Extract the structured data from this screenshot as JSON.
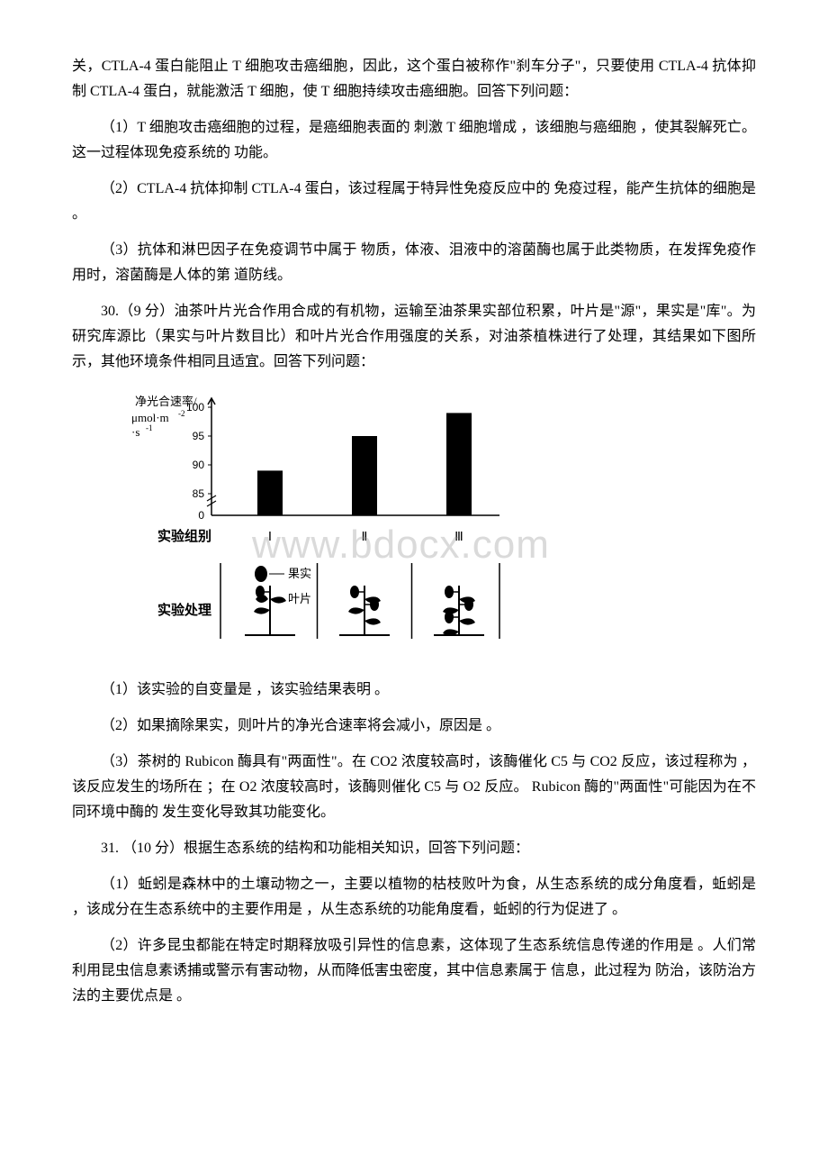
{
  "p1": "关，CTLA-4 蛋白能阻止 T 细胞攻击癌细胞，因此，这个蛋白被称作\"刹车分子\"，只要使用 CTLA-4 抗体抑制 CTLA-4 蛋白，就能激活 T 细胞，使 T 细胞持续攻击癌细胞。回答下列问题：",
  "p2": "（1）T 细胞攻击癌细胞的过程，是癌细胞表面的 刺激 T 细胞增成 ，该细胞与癌细胞 ，使其裂解死亡。这一过程体现免疫系统的 功能。",
  "p3": "（2）CTLA-4 抗体抑制 CTLA-4 蛋白，该过程属于特异性免疫反应中的 免疫过程，能产生抗体的细胞是 。",
  "p4": "（3）抗体和淋巴因子在免疫调节中属于 物质，体液、泪液中的溶菌酶也属于此类物质，在发挥免疫作用时，溶菌酶是人体的第 道防线。",
  "q30": "30.（9 分）油茶叶片光合作用合成的有机物，运输至油茶果实部位积累，叶片是\"源\"，果实是\"库\"。为研究库源比（果实与叶片数目比）和叶片光合作用强度的关系，对油茶植株进行了处理，其结果如下图所示，其他环境条件相同且适宜。回答下列问题：",
  "chart": {
    "type": "bar-with-diagram",
    "y_label": "净光合速率/\nμmol·m⁻²·s⁻¹",
    "y_ticks": [
      0,
      85,
      90,
      95,
      100
    ],
    "groups": [
      "Ⅰ",
      "Ⅱ",
      "Ⅲ"
    ],
    "bar_values": [
      89,
      95,
      99
    ],
    "bar_color": "#000000",
    "row1_label": "实验组别",
    "row2_label": "实验处理",
    "legend_fruit": "果实",
    "legend_leaf": "叶片",
    "axis_color": "#000000",
    "bg_color": "#ffffff"
  },
  "watermark_text": "www.bdocx.com",
  "p5": "（1）该实验的自变量是 ，该实验结果表明 。",
  "p6": "（2）如果摘除果实，则叶片的净光合速率将会减小，原因是 。",
  "p7": "（3）茶树的 Rubicon 酶具有\"两面性\"。在 CO2 浓度较高时，该酶催化 C5 与 CO2 反应，该过程称为 ，该反应发生的场所在 ；在 O2 浓度较高时，该酶则催化 C5 与 O2 反应。 Rubicon 酶的\"两面性\"可能因为在不同环境中酶的 发生变化导致其功能变化。",
  "q31": "31. （10 分）根据生态系统的结构和功能相关知识，回答下列问题：",
  "p8": "（1）蚯蚓是森林中的土壤动物之一，主要以植物的枯枝败叶为食，从生态系统的成分角度看，蚯蚓是 ，该成分在生态系统中的主要作用是 ，从生态系统的功能角度看，蚯蚓的行为促进了 。",
  "p9": "（2）许多昆虫都能在特定时期释放吸引异性的信息素，这体现了生态系统信息传递的作用是 。人们常利用昆虫信息素诱捕或警示有害动物，从而降低害虫密度，其中信息素属于 信息，此过程为 防治，该防治方法的主要优点是 。"
}
